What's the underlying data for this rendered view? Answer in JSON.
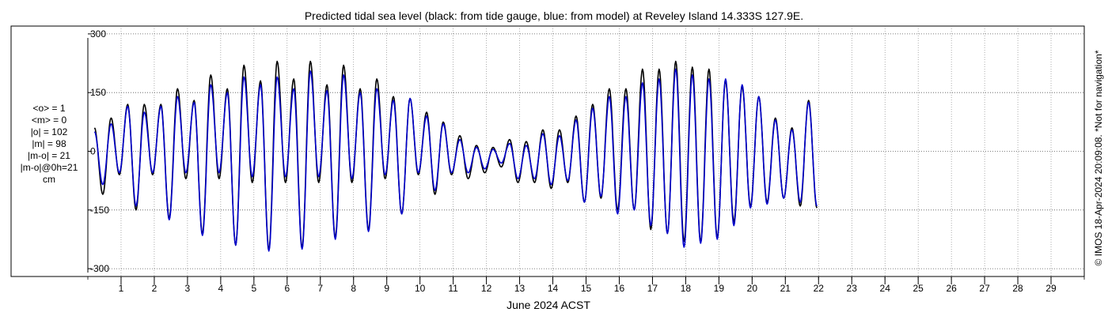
{
  "chart_data": {
    "type": "line",
    "title": "Predicted tidal sea level (black: from tide gauge, blue: from model) at Reveley Island 14.333S 127.9E.",
    "xlabel": "June 2024 ACST",
    "ylabel": "",
    "xlim": [
      0,
      30
    ],
    "ylim": [
      -320,
      320
    ],
    "x_ticks": [
      1,
      2,
      3,
      4,
      5,
      6,
      7,
      8,
      9,
      10,
      11,
      12,
      13,
      14,
      15,
      16,
      17,
      18,
      19,
      20,
      21,
      22,
      23,
      24,
      25,
      26,
      27,
      28,
      29
    ],
    "y_ticks": [
      -300,
      -150,
      0,
      150,
      300
    ],
    "grid": true,
    "data_start_day": 0.2,
    "series": [
      {
        "name": "tide gauge",
        "color": "#000000",
        "sample_step_days": 0.25,
        "values": [
          60,
          -110,
          85,
          -60,
          120,
          -150,
          120,
          -60,
          120,
          -170,
          160,
          -70,
          130,
          -210,
          195,
          -70,
          160,
          -240,
          220,
          -80,
          180,
          -250,
          230,
          -80,
          185,
          -245,
          230,
          -80,
          170,
          -220,
          220,
          -80,
          160,
          -200,
          185,
          -70,
          140,
          -160,
          135,
          -60,
          100,
          -110,
          75,
          -60,
          40,
          -70,
          15,
          -55,
          10,
          -40,
          30,
          -80,
          25,
          -80,
          55,
          -95,
          55,
          -80,
          90,
          -130,
          120,
          -120,
          160,
          -150,
          160,
          -150,
          210,
          -200,
          210,
          -210,
          230,
          -230,
          215,
          -230,
          210,
          -220,
          180,
          -180,
          165,
          -140,
          140,
          -130,
          85,
          -120,
          60,
          -140,
          130,
          -145
        ]
      },
      {
        "name": "model",
        "color": "#0000cc",
        "sample_step_days": 0.25,
        "values": [
          50,
          -85,
          70,
          -55,
          115,
          -140,
          100,
          -55,
          115,
          -175,
          140,
          -55,
          125,
          -215,
          170,
          -55,
          150,
          -240,
          190,
          -65,
          170,
          -255,
          190,
          -65,
          160,
          -250,
          205,
          -65,
          155,
          -225,
          195,
          -70,
          150,
          -205,
          160,
          -60,
          130,
          -160,
          135,
          -55,
          90,
          -100,
          70,
          -55,
          30,
          -55,
          10,
          -45,
          5,
          -30,
          20,
          -70,
          15,
          -70,
          45,
          -85,
          40,
          -75,
          80,
          -130,
          110,
          -115,
          140,
          -160,
          140,
          -150,
          175,
          -190,
          185,
          -210,
          210,
          -245,
          195,
          -235,
          185,
          -225,
          185,
          -190,
          170,
          -145,
          140,
          -135,
          80,
          -120,
          55,
          -130,
          125,
          -140
        ]
      }
    ],
    "stats": {
      "o_mean": "<o> = 1",
      "m_mean": "<m> = 0",
      "o_abs": "|o| = 102",
      "m_abs": "|m| = 98",
      "mo_abs": "|m-o| = 21",
      "mo_0h": "|m-o|@0h=21",
      "unit": "cm"
    },
    "side_note": "© IMOS 18-Apr-2024 20:09:08. *Not for navigation*"
  }
}
